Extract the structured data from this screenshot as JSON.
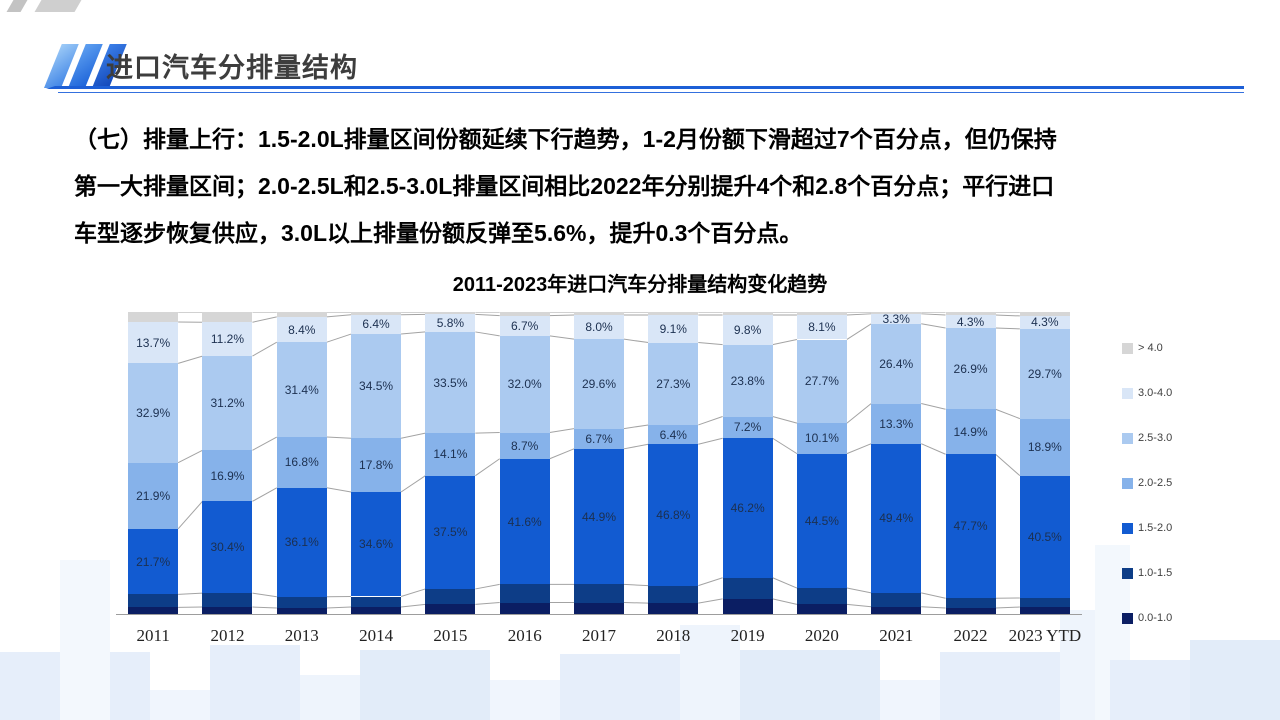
{
  "header": {
    "title": "进口汽车分排量结构"
  },
  "body_lines": [
    "（七）排量上行：1.5-2.0L排量区间份额延续下行趋势，1-2月份额下滑超过7个百分点，但仍保持",
    "第一大排量区间；2.0-2.5L和2.5-3.0L排量区间相比2022年分别提升4个和2.8个百分点；平行进口",
    "车型逐步恢复供应，3.0L以上排量份额反弹至5.6%，提升0.3个百分点。"
  ],
  "colors": {
    "accent_blue": "#1d5fd6",
    "connector_gray": "#a3a3a3",
    "bar_label_text": "#1c3050"
  },
  "chart_data": {
    "type": "bar",
    "stacked": true,
    "unit": "%",
    "title": "2011-2023年进口汽车分排量结构变化趋势",
    "categories": [
      "2011",
      "2012",
      "2013",
      "2014",
      "2015",
      "2016",
      "2017",
      "2018",
      "2019",
      "2020",
      "2021",
      "2022",
      "2023 YTD"
    ],
    "stack_order": "bottom_to_top",
    "series": [
      {
        "name": "0.0-1.0",
        "color": "#0b1e63",
        "labels_shown": false,
        "values_estimated": true,
        "values": [
          2.2,
          2.3,
          2.0,
          2.3,
          3.2,
          3.8,
          3.8,
          3.6,
          5.0,
          3.2,
          2.4,
          2.0,
          2.3
        ]
      },
      {
        "name": "1.0-1.5",
        "color": "#0d3d87",
        "labels_shown": false,
        "values_estimated": true,
        "values": [
          4.3,
          4.6,
          3.7,
          3.5,
          5.1,
          6.0,
          6.0,
          5.8,
          7.0,
          5.4,
          4.6,
          3.2,
          3.0
        ]
      },
      {
        "name": "1.5-2.0",
        "color": "#125bd1",
        "labels_shown": true,
        "values": [
          21.7,
          30.4,
          36.1,
          34.6,
          37.5,
          41.6,
          44.9,
          46.8,
          46.2,
          44.5,
          49.4,
          47.7,
          40.5
        ]
      },
      {
        "name": "2.0-2.5",
        "color": "#86b2ea",
        "labels_shown": true,
        "values": [
          21.9,
          16.9,
          16.8,
          17.8,
          14.1,
          8.7,
          6.7,
          6.4,
          7.2,
          10.1,
          13.3,
          14.9,
          18.9
        ]
      },
      {
        "name": "2.5-3.0",
        "color": "#abcaf0",
        "labels_shown": true,
        "values": [
          32.9,
          31.2,
          31.4,
          34.5,
          33.5,
          32.0,
          29.6,
          27.3,
          23.8,
          27.7,
          26.4,
          26.9,
          29.7
        ]
      },
      {
        "name": "3.0-4.0",
        "color": "#d9e6f7",
        "labels_shown": true,
        "values": [
          13.7,
          11.2,
          8.4,
          6.4,
          5.8,
          6.7,
          8.0,
          9.1,
          9.8,
          8.1,
          3.3,
          4.3,
          4.3
        ]
      },
      {
        "name": "> 4.0",
        "color": "#d6d6d6",
        "labels_shown": false,
        "values_estimated": true,
        "values": [
          3.3,
          3.4,
          1.6,
          0.9,
          0.8,
          1.2,
          1.0,
          1.0,
          1.0,
          1.0,
          0.6,
          1.0,
          1.3
        ]
      }
    ],
    "legend_position": "right",
    "legend_order": "top_to_bottom_reverse_of_stack",
    "ylim": [
      0,
      100
    ],
    "grid": false
  }
}
